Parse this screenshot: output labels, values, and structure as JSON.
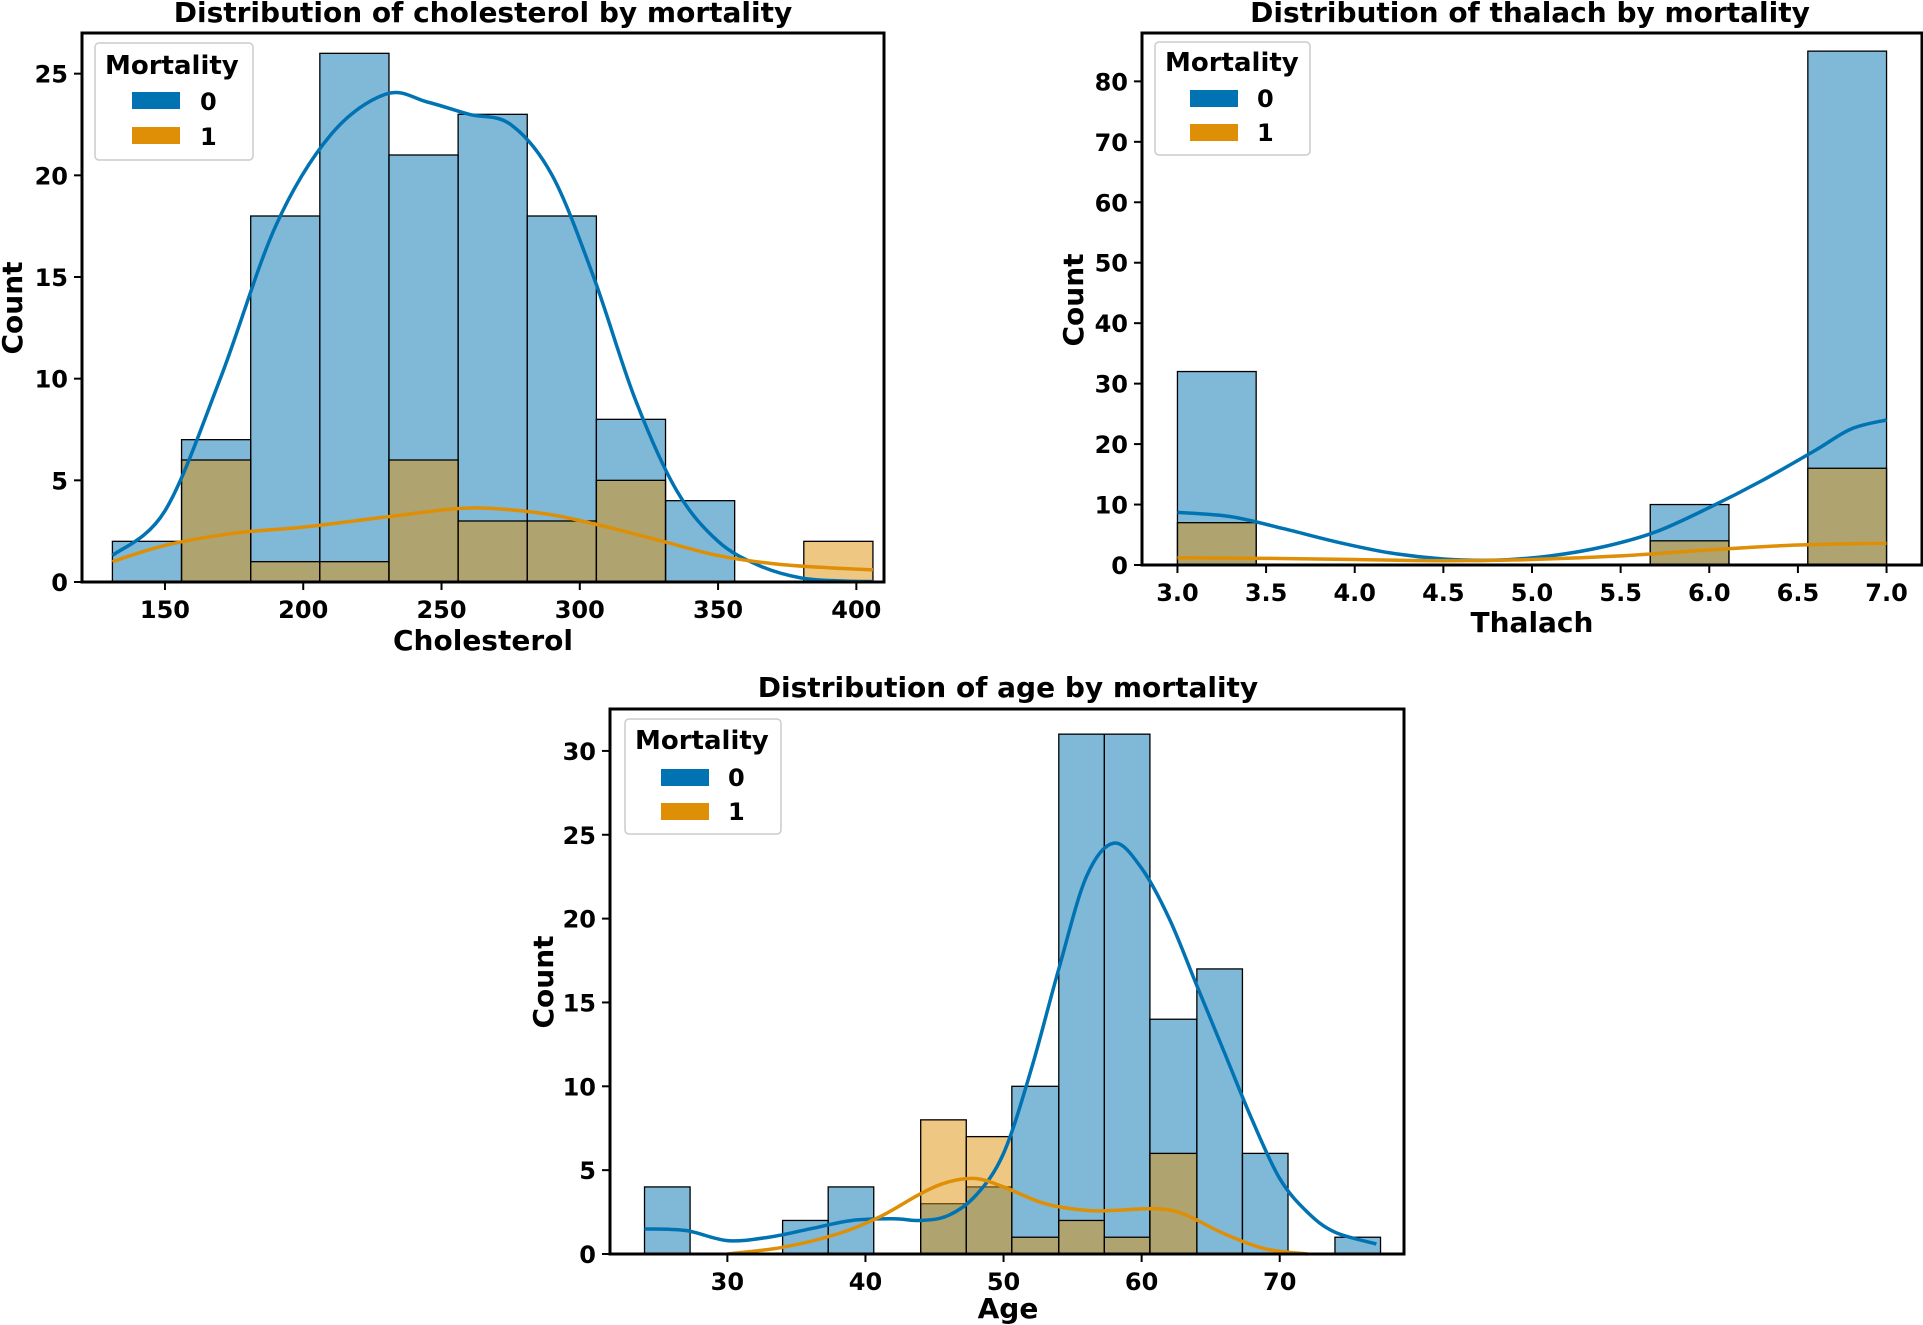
{
  "chart_data": [
    {
      "id": "chol",
      "type": "histogram",
      "title": "Distribution of cholesterol by mortality",
      "xlabel": "Cholesterol",
      "ylabel": "Count",
      "xlim": [
        120,
        410
      ],
      "ylim": [
        0,
        27
      ],
      "xticks": [
        150,
        200,
        250,
        300,
        350,
        400
      ],
      "yticks": [
        0,
        5,
        10,
        15,
        20,
        25
      ],
      "tick_labels_x": [
        "150",
        "200",
        "250",
        "300",
        "350",
        "400"
      ],
      "tick_labels_y": [
        "0",
        "5",
        "10",
        "15",
        "20",
        "25"
      ],
      "bin_edges": [
        131,
        156,
        181,
        206,
        231,
        256,
        281,
        306,
        331,
        356,
        381,
        406
      ],
      "legend": {
        "title": "Mortality",
        "location": "upper-left",
        "entries": [
          "0",
          "1"
        ]
      },
      "series": [
        {
          "name": "0",
          "color": "#0173b2",
          "counts": [
            2,
            7,
            18,
            26,
            21,
            23,
            18,
            8,
            4,
            0,
            0
          ],
          "kde": [
            [
              131,
              1.3
            ],
            [
              150,
              3.5
            ],
            [
              170,
              10
            ],
            [
              190,
              17.5
            ],
            [
              210,
              22
            ],
            [
              230,
              24
            ],
            [
              245,
              23.6
            ],
            [
              260,
              23
            ],
            [
              275,
              22.5
            ],
            [
              290,
              20
            ],
            [
              305,
              15
            ],
            [
              320,
              9
            ],
            [
              335,
              4.5
            ],
            [
              350,
              2
            ],
            [
              365,
              0.8
            ],
            [
              380,
              0.2
            ],
            [
              395,
              0.05
            ],
            [
              406,
              0.02
            ]
          ]
        },
        {
          "name": "1",
          "color": "#de8f05",
          "counts": [
            0,
            6,
            1,
            1,
            6,
            3,
            3,
            5,
            0,
            0,
            2
          ],
          "kde": [
            [
              131,
              1
            ],
            [
              150,
              1.8
            ],
            [
              175,
              2.4
            ],
            [
              200,
              2.7
            ],
            [
              230,
              3.2
            ],
            [
              255,
              3.6
            ],
            [
              270,
              3.6
            ],
            [
              290,
              3.3
            ],
            [
              310,
              2.7
            ],
            [
              330,
              2
            ],
            [
              350,
              1.3
            ],
            [
              370,
              0.9
            ],
            [
              390,
              0.7
            ],
            [
              406,
              0.6
            ]
          ]
        }
      ]
    },
    {
      "id": "thal",
      "type": "histogram",
      "title": "Distribution of thalach by mortality",
      "xlabel": "Thalach",
      "ylabel": "Count",
      "xlim": [
        2.8,
        7.2
      ],
      "ylim": [
        0,
        88
      ],
      "xticks": [
        3.0,
        3.5,
        4.0,
        4.5,
        5.0,
        5.5,
        6.0,
        6.5,
        7.0
      ],
      "yticks": [
        0,
        10,
        20,
        30,
        40,
        50,
        60,
        70,
        80
      ],
      "tick_labels_x": [
        "3.0",
        "3.5",
        "4.0",
        "4.5",
        "5.0",
        "5.5",
        "6.0",
        "6.5",
        "7.0"
      ],
      "tick_labels_y": [
        "0",
        "10",
        "20",
        "30",
        "40",
        "50",
        "60",
        "70",
        "80"
      ],
      "bin_edges": [
        3.0,
        3.444,
        3.889,
        4.333,
        4.778,
        5.222,
        5.667,
        6.111,
        6.556,
        7.0
      ],
      "legend": {
        "title": "Mortality",
        "location": "upper-left",
        "entries": [
          "0",
          "1"
        ]
      },
      "series": [
        {
          "name": "0",
          "color": "#0173b2",
          "counts": [
            32,
            0,
            0,
            0,
            0,
            0,
            10,
            0,
            85
          ],
          "kde": [
            [
              3.0,
              8.7
            ],
            [
              3.3,
              8
            ],
            [
              3.6,
              6
            ],
            [
              3.9,
              3.8
            ],
            [
              4.2,
              2
            ],
            [
              4.5,
              1
            ],
            [
              4.8,
              0.8
            ],
            [
              5.1,
              1.5
            ],
            [
              5.4,
              3
            ],
            [
              5.7,
              5.5
            ],
            [
              6.0,
              9.5
            ],
            [
              6.3,
              14
            ],
            [
              6.6,
              19
            ],
            [
              6.8,
              22.5
            ],
            [
              7.0,
              24
            ]
          ]
        },
        {
          "name": "1",
          "color": "#de8f05",
          "counts": [
            7,
            0,
            0,
            0,
            0,
            0,
            4,
            0,
            16
          ],
          "kde": [
            [
              3.0,
              1.2
            ],
            [
              3.5,
              1.1
            ],
            [
              4.0,
              0.9
            ],
            [
              4.5,
              0.7
            ],
            [
              5.0,
              0.9
            ],
            [
              5.5,
              1.5
            ],
            [
              6.0,
              2.5
            ],
            [
              6.5,
              3.3
            ],
            [
              7.0,
              3.6
            ]
          ]
        }
      ]
    },
    {
      "id": "age",
      "type": "histogram",
      "title": "Distribution of age by mortality",
      "xlabel": "Age",
      "ylabel": "Count",
      "xlim": [
        21.5,
        79
      ],
      "ylim": [
        0,
        32.5
      ],
      "xticks": [
        30,
        40,
        50,
        60,
        70
      ],
      "yticks": [
        0,
        5,
        10,
        15,
        20,
        25,
        30
      ],
      "tick_labels_x": [
        "30",
        "40",
        "50",
        "60",
        "70"
      ],
      "tick_labels_y": [
        "0",
        "5",
        "10",
        "15",
        "20",
        "25",
        "30"
      ],
      "bin_edges": [
        24,
        27.3,
        30.6,
        34,
        37.3,
        40.6,
        44,
        47.3,
        50.6,
        54,
        57.3,
        60.6,
        64,
        67.3,
        70.6,
        74,
        77.3
      ],
      "legend": {
        "title": "Mortality",
        "location": "upper-left",
        "entries": [
          "0",
          "1"
        ]
      },
      "series": [
        {
          "name": "0",
          "color": "#0173b2",
          "counts": [
            4,
            0,
            0,
            2,
            4,
            0,
            3,
            4,
            10,
            31,
            31,
            14,
            17,
            6,
            0,
            1
          ],
          "kde": [
            [
              24,
              1.5
            ],
            [
              27,
              1.4
            ],
            [
              30,
              0.8
            ],
            [
              33,
              1
            ],
            [
              36,
              1.5
            ],
            [
              39,
              2
            ],
            [
              42,
              2.1
            ],
            [
              44,
              2
            ],
            [
              46,
              2.3
            ],
            [
              48,
              3.5
            ],
            [
              50,
              6
            ],
            [
              52,
              11
            ],
            [
              54,
              17
            ],
            [
              56,
              22.5
            ],
            [
              58,
              24.5
            ],
            [
              60,
              23
            ],
            [
              62,
              20
            ],
            [
              64,
              16
            ],
            [
              66,
              12
            ],
            [
              68,
              8
            ],
            [
              70,
              4.5
            ],
            [
              72,
              2.5
            ],
            [
              74,
              1.3
            ],
            [
              77,
              0.6
            ]
          ]
        },
        {
          "name": "1",
          "color": "#de8f05",
          "counts": [
            0,
            0,
            0,
            0,
            0,
            0,
            8,
            7,
            1,
            2,
            1,
            6,
            0,
            0,
            0,
            0
          ],
          "kde": [
            [
              30,
              0
            ],
            [
              34,
              0.4
            ],
            [
              38,
              1.2
            ],
            [
              41,
              2.2
            ],
            [
              44,
              3.6
            ],
            [
              46,
              4.3
            ],
            [
              48,
              4.5
            ],
            [
              50,
              4
            ],
            [
              53,
              3
            ],
            [
              56,
              2.6
            ],
            [
              58,
              2.6
            ],
            [
              61,
              2.7
            ],
            [
              63,
              2.4
            ],
            [
              66,
              1.2
            ],
            [
              69,
              0.3
            ],
            [
              72,
              0
            ]
          ]
        }
      ]
    }
  ]
}
